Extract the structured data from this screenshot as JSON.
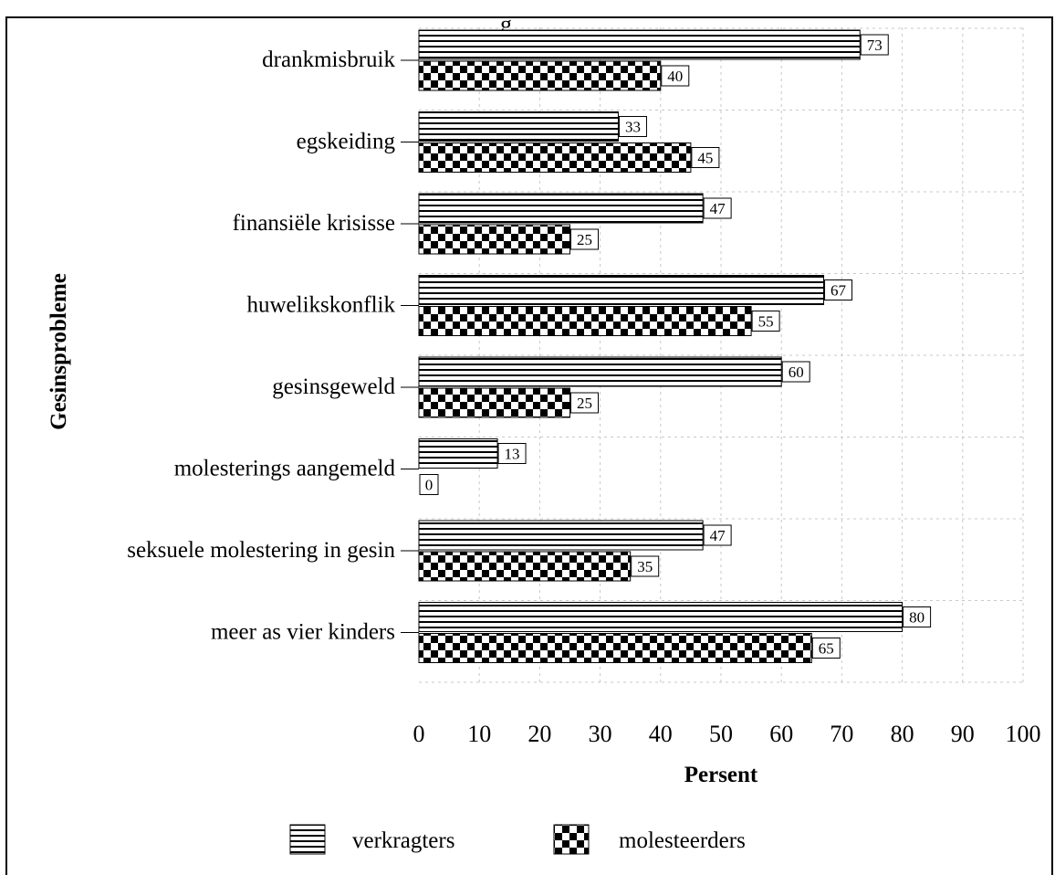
{
  "chart_data": {
    "type": "bar",
    "orientation": "horizontal",
    "title_fragment": "g",
    "xlabel": "Persent",
    "ylabel": "Gesinsprobleme",
    "xlim": [
      0,
      100
    ],
    "xticks": [
      0,
      10,
      20,
      30,
      40,
      50,
      60,
      70,
      80,
      90,
      100
    ],
    "categories": [
      "drankmisbruik",
      "egskeiding",
      "finansiële krisisse",
      "huwelikskonflik",
      "gesinsgeweld",
      "molesterings aangemeld",
      "seksuele molestering in gesin",
      "meer as vier kinders"
    ],
    "series": [
      {
        "name": "verkragters",
        "pattern": "horizontal-stripes",
        "values": [
          73,
          33,
          47,
          67,
          60,
          13,
          47,
          80
        ]
      },
      {
        "name": "molesteerders",
        "pattern": "checkerboard",
        "values": [
          40,
          45,
          25,
          55,
          25,
          0,
          35,
          65
        ]
      }
    ],
    "grid": true,
    "legend": "bottom-center"
  }
}
